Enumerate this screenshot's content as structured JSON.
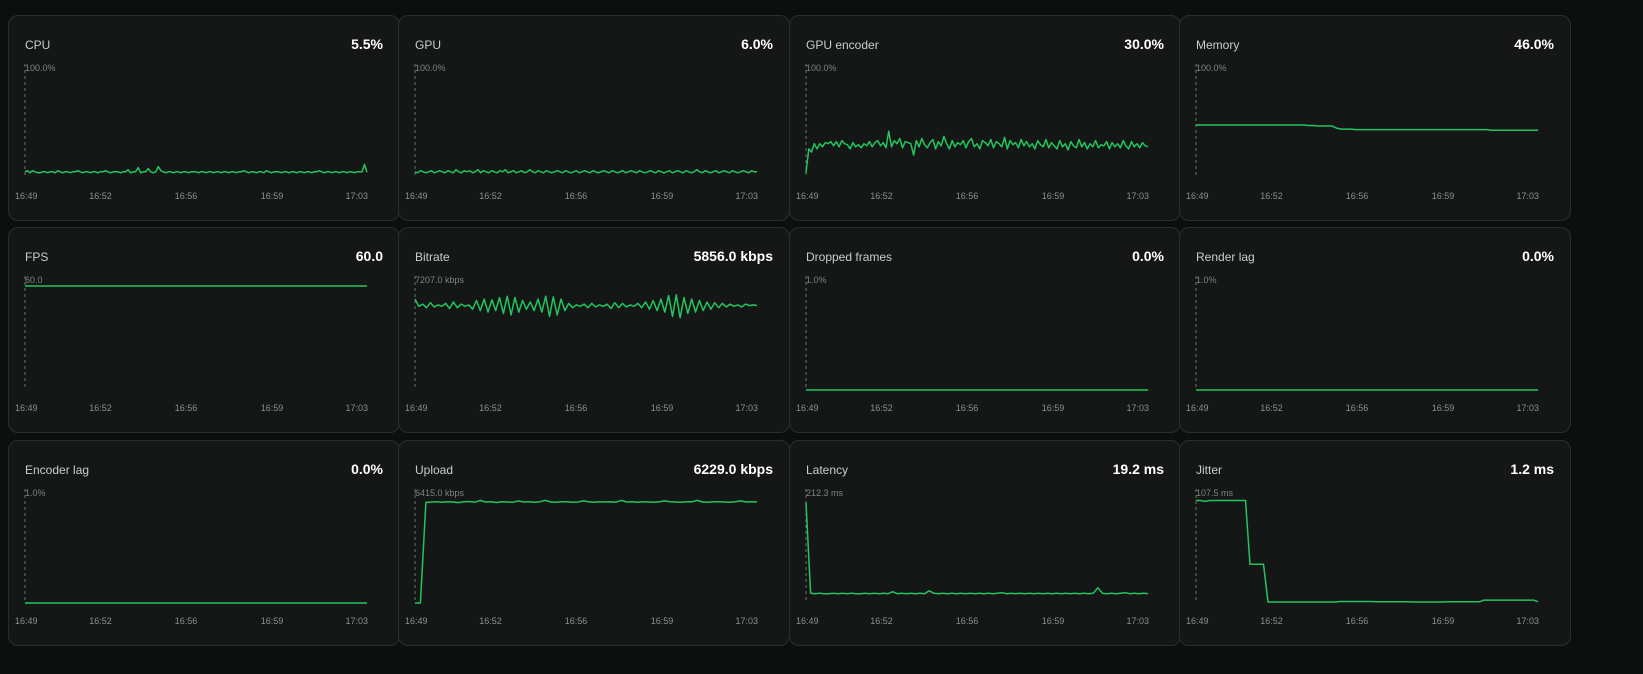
{
  "colors": {
    "line": "#22c55e",
    "background": "#0d0f0e",
    "card": "#141716",
    "border": "#2a2e2c"
  },
  "x_ticks": [
    "16:49",
    "16:52",
    "16:56",
    "16:59",
    "17:03"
  ],
  "cards": [
    {
      "title": "CPU",
      "value": "5.5%",
      "max_label": "100.0%",
      "max": 100,
      "series": [
        6,
        7,
        5,
        7,
        6,
        5,
        5,
        6,
        6,
        5,
        6,
        6,
        5,
        7,
        6,
        5,
        6,
        6,
        5,
        6,
        6,
        7,
        6,
        5,
        6,
        6,
        5,
        6,
        6,
        5,
        6,
        6,
        7,
        6,
        5,
        6,
        6,
        6,
        5,
        6,
        6,
        8,
        5,
        6,
        6,
        10,
        5,
        6,
        6,
        9,
        6,
        5,
        6,
        11,
        7,
        6,
        5,
        6,
        6,
        5,
        6,
        6,
        5,
        6,
        6,
        5,
        6,
        6,
        6,
        5,
        6,
        6,
        5,
        6,
        6,
        5,
        6,
        6,
        5,
        6,
        6,
        5,
        6,
        6,
        5,
        6,
        6,
        7,
        6,
        5,
        6,
        6,
        5,
        6,
        6,
        5,
        7,
        6,
        5,
        6,
        6,
        6,
        5,
        6,
        6,
        5,
        6,
        6,
        5,
        6,
        6,
        5,
        6,
        6,
        5,
        6,
        6,
        7,
        6,
        5,
        6,
        6,
        5,
        6,
        6,
        5,
        6,
        6,
        5,
        6,
        6,
        5,
        6,
        6,
        6,
        13,
        5.5
      ]
    },
    {
      "title": "GPU",
      "value": "6.0%",
      "max_label": "100.0%",
      "max": 100,
      "series": [
        6,
        5,
        7,
        6,
        5,
        6,
        7,
        5,
        6,
        7,
        6,
        5,
        7,
        6,
        5,
        8,
        6,
        5,
        7,
        6,
        7,
        5,
        6,
        8,
        5,
        7,
        6,
        5,
        7,
        6,
        5,
        7,
        6,
        8,
        5,
        6,
        7,
        5,
        6,
        7,
        5,
        6,
        8,
        6,
        5,
        7,
        6,
        5,
        7,
        6,
        5,
        6,
        7,
        6,
        5,
        7,
        6,
        5,
        6,
        7,
        5,
        6,
        7,
        6,
        5,
        7,
        6,
        5,
        6,
        7,
        6,
        5,
        7,
        6,
        5,
        6,
        7,
        5,
        6,
        7,
        6,
        5,
        7,
        6,
        5,
        6,
        7,
        6,
        5,
        7,
        6,
        5,
        6,
        7,
        5,
        6,
        7,
        6,
        5,
        7,
        6,
        5,
        6,
        8,
        6,
        5,
        7,
        6,
        5,
        6,
        7,
        5,
        6,
        7,
        6,
        5,
        7,
        6,
        5,
        6,
        7,
        6,
        5,
        7,
        6,
        6.0
      ]
    },
    {
      "title": "GPU encoder",
      "value": "30.0%",
      "max_label": "100.0%",
      "max": 100,
      "series": [
        5,
        28,
        25,
        33,
        28,
        33,
        30,
        34,
        33,
        35,
        31,
        35,
        30,
        36,
        33,
        32,
        28,
        34,
        30,
        32,
        29,
        33,
        31,
        35,
        30,
        34,
        36,
        31,
        34,
        29,
        45,
        30,
        36,
        33,
        38,
        29,
        35,
        34,
        33,
        22,
        36,
        30,
        38,
        32,
        29,
        34,
        37,
        28,
        35,
        31,
        40,
        33,
        28,
        36,
        30,
        34,
        32,
        36,
        29,
        35,
        38,
        30,
        33,
        28,
        36,
        34,
        31,
        37,
        29,
        35,
        33,
        30,
        39,
        28,
        36,
        32,
        34,
        29,
        37,
        31,
        35,
        30,
        33,
        28,
        36,
        32,
        30,
        37,
        29,
        34,
        31,
        28,
        36,
        30,
        33,
        27,
        35,
        31,
        29,
        37,
        30,
        34,
        28,
        33,
        30,
        36,
        29,
        32,
        31,
        35,
        28,
        34,
        30,
        33,
        29,
        36,
        31,
        28,
        35,
        30,
        33,
        29,
        34,
        31,
        30
      ]
    },
    {
      "title": "Memory",
      "value": "46.0%",
      "max_label": "100.0%",
      "max": 100,
      "series": [
        51,
        51,
        51,
        51,
        51,
        51,
        51,
        51,
        51,
        51,
        51,
        51,
        51,
        51,
        51,
        51,
        51,
        51,
        51,
        51,
        51,
        51,
        51,
        51,
        50.5,
        50.5,
        50,
        50,
        50,
        50,
        48,
        47,
        47,
        47,
        46.5,
        46.5,
        46.5,
        46.5,
        46.5,
        46.5,
        46.5,
        46.5,
        46.5,
        46.5,
        46.5,
        46.5,
        46.5,
        46.5,
        46.5,
        46.5,
        46.5,
        46.5,
        46.5,
        46.5,
        46.5,
        46.5,
        46.5,
        46.5,
        46.5,
        46.5,
        46.5,
        46.5,
        46.5,
        46,
        46,
        46,
        46,
        46,
        46,
        46,
        46,
        46,
        46,
        46
      ]
    },
    {
      "title": "FPS",
      "value": "60.0",
      "max_label": "60.0",
      "max": 60,
      "series": [
        60,
        60,
        60,
        60,
        60,
        60,
        60,
        60,
        60,
        60
      ]
    },
    {
      "title": "Bitrate",
      "value": "5856.0 kbps",
      "max_label": "7207.0 kbps",
      "max": 7207,
      "series": [
        6300,
        5800,
        5950,
        5700,
        6050,
        5750,
        5900,
        5800,
        6000,
        5650,
        6100,
        5700,
        5950,
        5800,
        5900,
        5600,
        6200,
        5500,
        6300,
        5400,
        6250,
        5500,
        6400,
        5300,
        6500,
        5200,
        6400,
        5400,
        6200,
        5600,
        6100,
        5500,
        6300,
        5400,
        6500,
        5100,
        6450,
        5200,
        6300,
        5500,
        6000,
        5700,
        5900,
        5800,
        5950,
        5700,
        6000,
        5750,
        5900,
        5800,
        5950,
        5650,
        6050,
        5700,
        6000,
        5750,
        5900,
        5800,
        6000,
        5700,
        6100,
        5600,
        6200,
        5500,
        6300,
        5400,
        6550,
        5100,
        6600,
        5000,
        6400,
        5300,
        6300,
        5400,
        6200,
        5500,
        6100,
        5600,
        6050,
        5700,
        6000,
        5750,
        5950,
        5800,
        5900,
        5750,
        5950,
        5850,
        5900,
        5856
      ]
    },
    {
      "title": "Dropped frames",
      "value": "0.0%",
      "max_label": "1.0%",
      "max": 1,
      "series": [
        0,
        0,
        0,
        0,
        0,
        0,
        0,
        0,
        0,
        0
      ]
    },
    {
      "title": "Render lag",
      "value": "0.0%",
      "max_label": "1.0%",
      "max": 1,
      "series": [
        0,
        0,
        0,
        0,
        0,
        0,
        0,
        0,
        0,
        0
      ]
    },
    {
      "title": "Encoder lag",
      "value": "0.0%",
      "max_label": "1.0%",
      "max": 1,
      "series": [
        0,
        0,
        0,
        0,
        0,
        0,
        0,
        0,
        0,
        0
      ]
    },
    {
      "title": "Upload",
      "value": "6229.0 kbps",
      "max_label": "6415.0 kbps",
      "max": 6415,
      "series": [
        0,
        0,
        6200,
        6230,
        6240,
        6210,
        6250,
        6230,
        6190,
        6240,
        6260,
        6220,
        6330,
        6230,
        6240,
        6200,
        6250,
        6230,
        6210,
        6300,
        6230,
        6240,
        6220,
        6250,
        6330,
        6230,
        6210,
        6240,
        6250,
        6220,
        6230,
        6300,
        6240,
        6210,
        6250,
        6230,
        6240,
        6220,
        6330,
        6230,
        6250,
        6210,
        6240,
        6230,
        6220,
        6250,
        6300,
        6240,
        6230,
        6210,
        6250,
        6240,
        6330,
        6230,
        6220,
        6240,
        6250,
        6230,
        6210,
        6240,
        6300,
        6230,
        6250,
        6229
      ]
    },
    {
      "title": "Latency",
      "value": "19.2 ms",
      "max_label": "212.3 ms",
      "max": 212.3,
      "series": [
        205,
        20,
        19,
        20,
        19,
        19,
        20,
        19,
        20,
        19,
        20,
        19,
        19,
        20,
        19,
        20,
        19,
        20,
        19,
        23,
        19,
        20,
        19,
        20,
        19,
        20,
        19,
        25,
        20,
        19,
        20,
        19,
        20,
        19,
        20,
        19,
        20,
        19,
        20,
        19,
        20,
        19,
        20,
        21,
        19,
        20,
        19,
        20,
        19,
        20,
        19,
        20,
        19,
        20,
        19,
        20,
        19,
        20,
        19,
        20,
        19,
        20,
        19,
        20,
        31,
        20,
        19,
        20,
        19,
        20,
        21,
        19,
        20,
        19,
        20,
        19.2
      ]
    },
    {
      "title": "Jitter",
      "value": "1.2 ms",
      "max_label": "107.5 ms",
      "max": 107.5,
      "series": [
        106,
        106,
        105,
        106,
        106,
        106,
        106,
        106,
        106,
        106,
        106,
        106,
        40,
        40,
        40,
        40,
        1,
        1,
        1,
        1,
        1,
        1,
        1,
        1,
        1,
        1,
        1,
        1,
        1,
        1,
        1,
        1,
        1.5,
        1.5,
        1.5,
        1.5,
        1.5,
        1.5,
        1.5,
        1.5,
        1.2,
        1.2,
        1.2,
        1.2,
        1.2,
        1.2,
        1.2,
        1.2,
        1,
        1,
        1,
        1,
        1,
        1,
        1,
        1,
        1.2,
        1.2,
        1.2,
        1.2,
        1.2,
        1.2,
        1.2,
        1.2,
        3,
        3,
        3,
        3,
        3,
        3,
        3,
        3,
        3,
        3,
        3,
        3,
        1.2
      ]
    }
  ]
}
